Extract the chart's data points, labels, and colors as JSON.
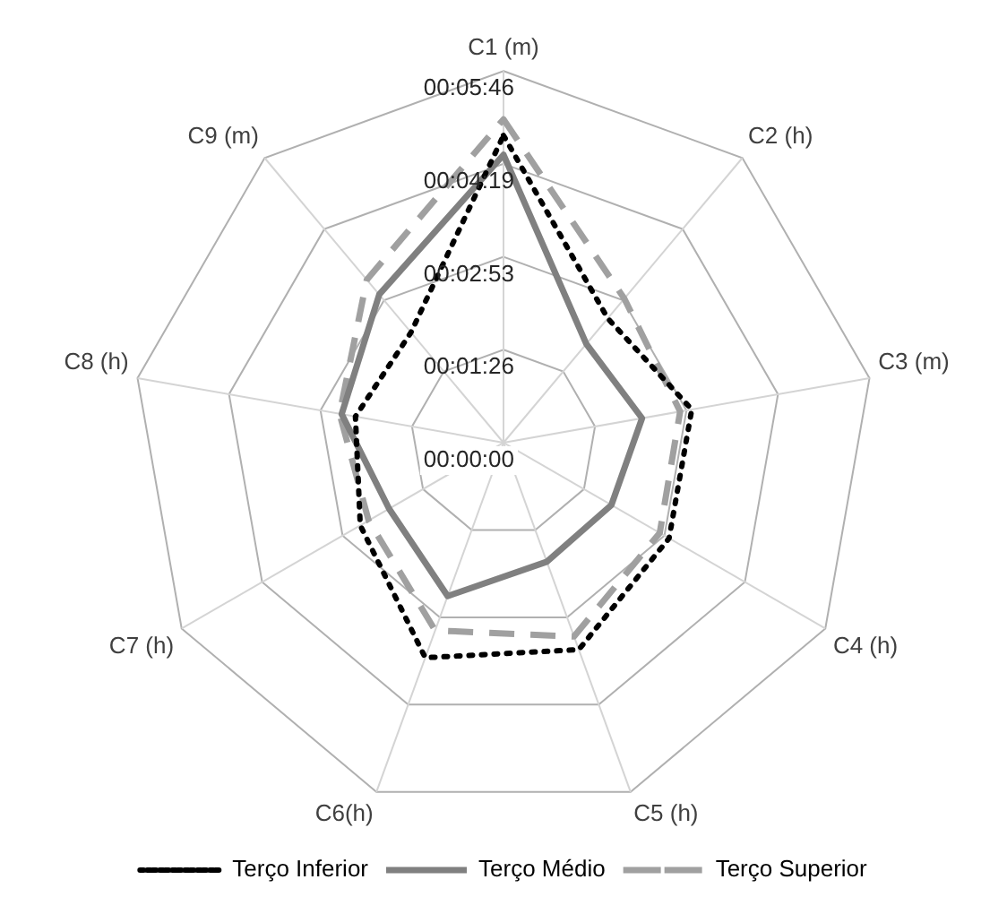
{
  "chart_data": {
    "type": "radar",
    "categories": [
      "C1 (m)",
      "C2 (h)",
      "C3 (m)",
      "C4 (h)",
      "C5 (h)",
      "C6(h)",
      "C7 (h)",
      "C8 (h)",
      "C9 (m)"
    ],
    "series": [
      {
        "name": "Terço Inferior",
        "color": "#000000",
        "line_style": "dotted",
        "values": [
          286,
          151,
          178,
          178,
          205,
          213,
          154,
          140,
          134
        ]
      },
      {
        "name": "Terço Médio",
        "color": "#808080",
        "line_style": "solid",
        "values": [
          268,
          120,
          131,
          116,
          118,
          152,
          123,
          153,
          180
        ]
      },
      {
        "name": "Terço Superior",
        "color": "#a0a0a0",
        "line_style": "dashed",
        "values": [
          301,
          175,
          167,
          168,
          192,
          186,
          145,
          155,
          198
        ]
      }
    ],
    "ylim": [
      0,
      346
    ],
    "yticks": [
      {
        "value": 0,
        "label": "00:00:00"
      },
      {
        "value": 86.5,
        "label": "00:01:26"
      },
      {
        "value": 173,
        "label": "00:02:53"
      },
      {
        "value": 259.5,
        "label": "00:04:19"
      },
      {
        "value": 346,
        "label": "00:05:46"
      }
    ],
    "grid": true,
    "legend": "bottom",
    "marker": "none"
  }
}
